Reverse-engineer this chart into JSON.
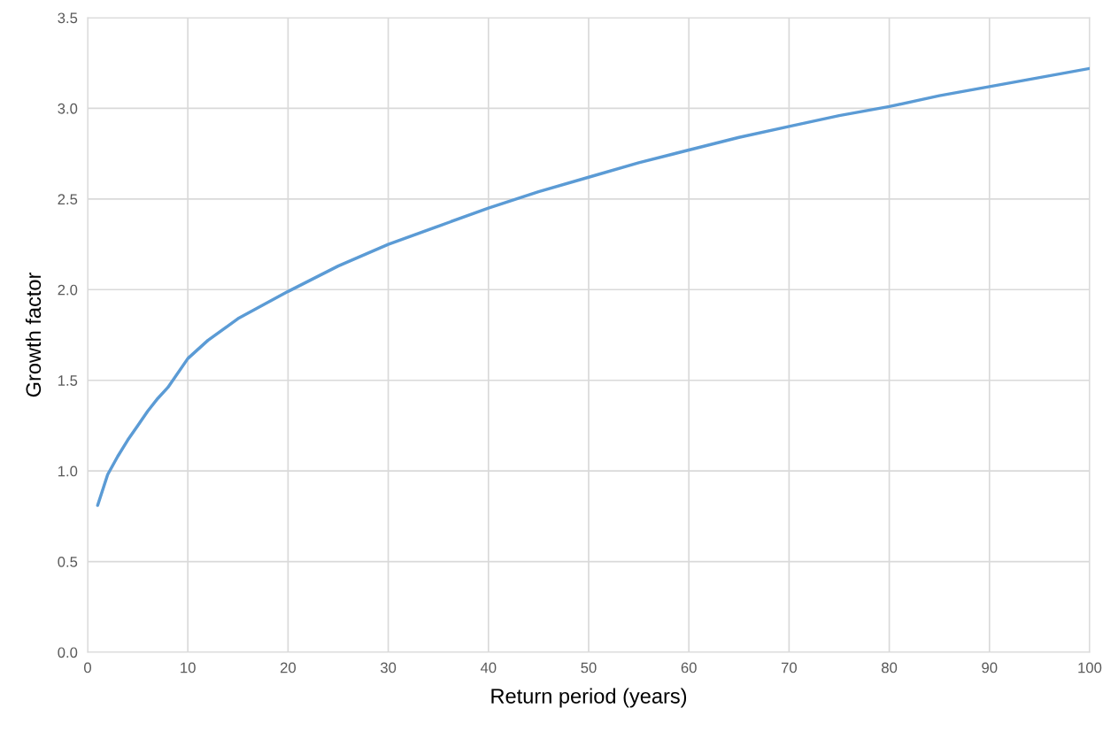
{
  "chart_data": {
    "type": "line",
    "xlabel": "Return period (years)",
    "ylabel": "Growth factor",
    "x": [
      1,
      2,
      3,
      4,
      5,
      6,
      7,
      8,
      10,
      12,
      15,
      20,
      25,
      30,
      35,
      40,
      45,
      50,
      55,
      60,
      65,
      70,
      75,
      80,
      85,
      90,
      95,
      100
    ],
    "series": [
      {
        "color": "#5b9bd5",
        "values": [
          0.81,
          0.98,
          1.08,
          1.17,
          1.25,
          1.33,
          1.4,
          1.46,
          1.62,
          1.72,
          1.84,
          1.99,
          2.13,
          2.25,
          2.35,
          2.45,
          2.54,
          2.62,
          2.7,
          2.77,
          2.84,
          2.9,
          2.96,
          3.01,
          3.07,
          3.12,
          3.17,
          3.22
        ]
      }
    ],
    "xlim": [
      0,
      100
    ],
    "xticks": [
      0,
      10,
      20,
      30,
      40,
      50,
      60,
      70,
      80,
      90,
      100
    ],
    "ylim": [
      0,
      3.5
    ],
    "yticks": [
      {
        "value": 0,
        "label": "0.0"
      },
      {
        "value": 0.5,
        "label": "0.5"
      },
      {
        "value": 1,
        "label": "1.0"
      },
      {
        "value": 1.5,
        "label": "1.5"
      },
      {
        "value": 2,
        "label": "2.0"
      },
      {
        "value": 2.5,
        "label": "2.5"
      },
      {
        "value": 3,
        "label": "3.0"
      },
      {
        "value": 3.5,
        "label": "3.5"
      }
    ],
    "grid": true,
    "marker": "none",
    "line_style": "solid"
  }
}
